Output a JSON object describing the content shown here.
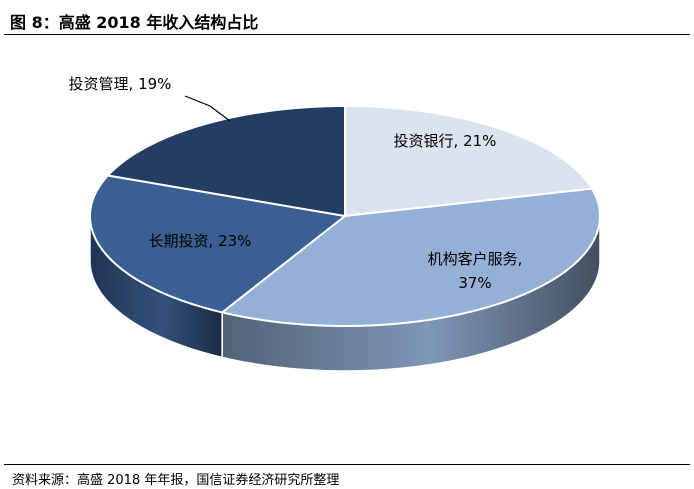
{
  "header": {
    "title": "图 8：高盛 2018 年收入结构占比"
  },
  "footer": {
    "source": "资料来源：高盛 2018 年年报，国信证券经济研究所整理"
  },
  "colors": {
    "投资银行": "#dbe3ef",
    "机构客户服务": "#95b0d6",
    "长期投资": "#3c5f93",
    "投资管理": "#233d63"
  },
  "chart_data": {
    "type": "pie",
    "title": "",
    "slices": [
      {
        "label": "投资银行",
        "value": 21,
        "value_text": "21%"
      },
      {
        "label": "机构客户服务",
        "value": 37,
        "value_text": "37%"
      },
      {
        "label": "长期投资",
        "value": 23,
        "value_text": "23%"
      },
      {
        "label": "投资管理",
        "value": 19,
        "value_text": "19%"
      }
    ],
    "style": "3d-exploded-none",
    "legend": "none"
  }
}
